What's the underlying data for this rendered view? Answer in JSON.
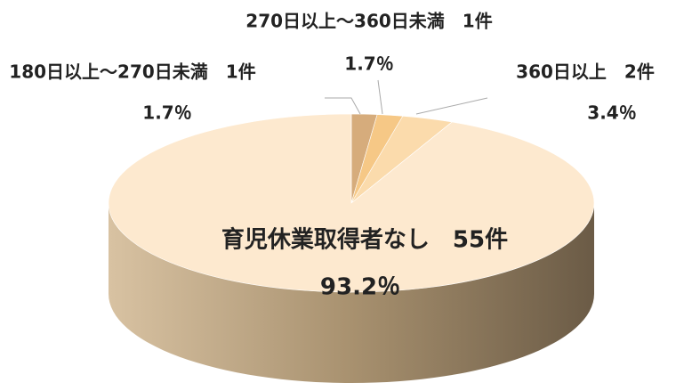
{
  "chart_data": {
    "type": "pie",
    "categories": [
      "180日以上～270日未満　1件",
      "270日以上～360日未満　1件",
      "360日以上　2件",
      "育児休業取得者なし　55件"
    ],
    "values": [
      1.7,
      1.7,
      3.4,
      93.2
    ],
    "value_labels": [
      "1.7％",
      "1.7％",
      "3.4％",
      "93.2％"
    ],
    "colors": [
      "#d6ac7c",
      "#f6c886",
      "#fbdbac",
      "#fde9cf"
    ]
  }
}
